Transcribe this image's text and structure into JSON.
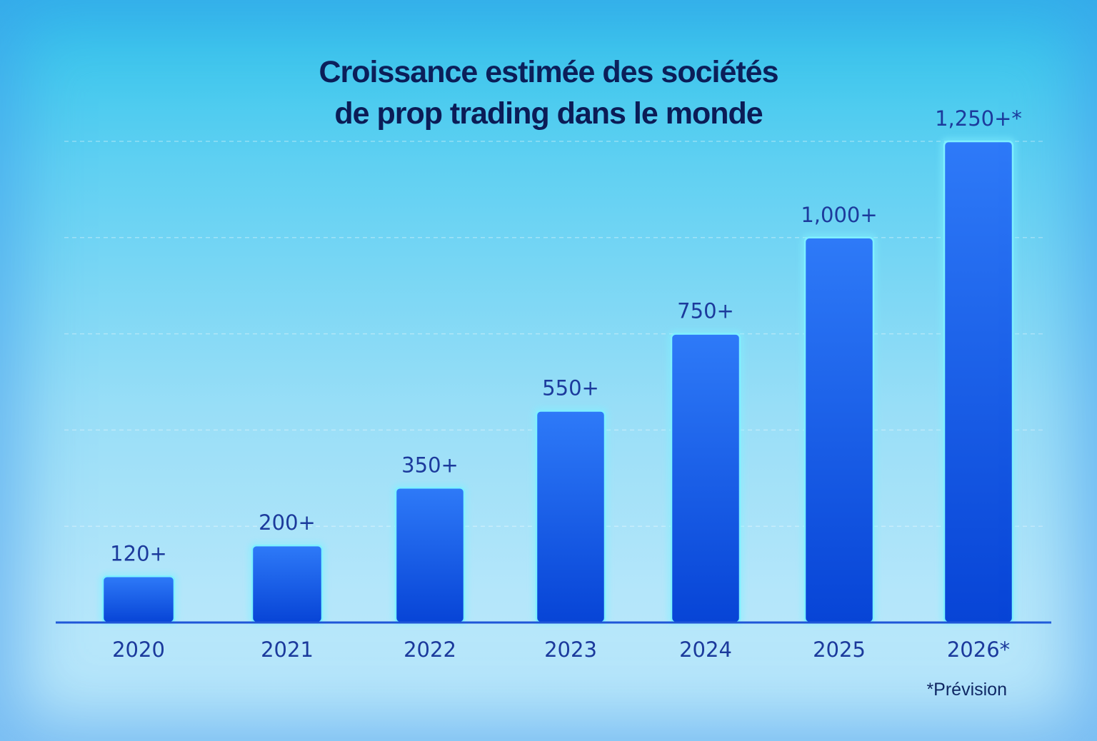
{
  "chart_data": {
    "type": "bar",
    "title_lines": [
      "Croissance estimée des sociétés",
      "de prop trading dans le monde"
    ],
    "categories": [
      "2020",
      "2021",
      "2022",
      "2023",
      "2024",
      "2025",
      "2026*"
    ],
    "values": [
      120,
      200,
      350,
      550,
      750,
      1000,
      1250
    ],
    "value_labels": [
      "120+",
      "200+",
      "350+",
      "550+",
      "750+",
      "1,000+",
      "1,250+*"
    ],
    "ylim": [
      0,
      1250
    ],
    "grid": true,
    "xlabel": "",
    "ylabel": "",
    "footnote": "*Prévision"
  },
  "colors": {
    "bar_top": "#2e7af8",
    "bar_bottom": "#0744d6",
    "bar_edge": "#7ff0ff",
    "label_text": "#1c3a9c",
    "title_text": "#0b1c56",
    "baseline": "#1f56d8"
  }
}
